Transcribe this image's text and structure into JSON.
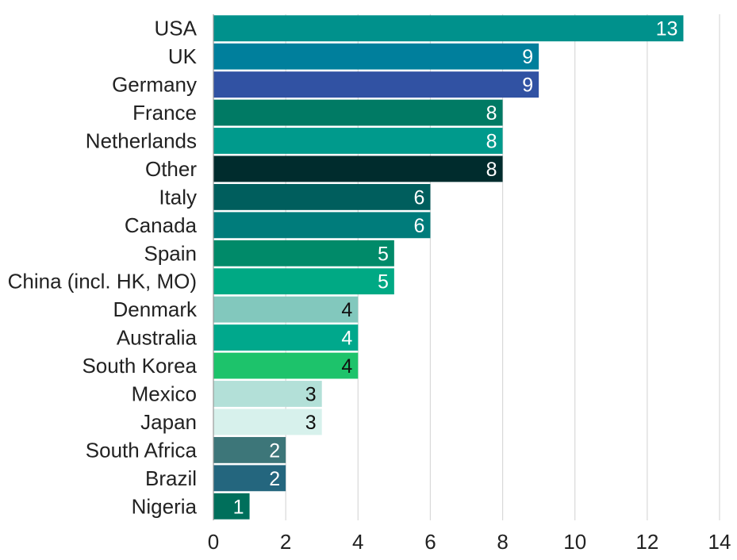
{
  "chart_data": {
    "type": "bar",
    "orientation": "horizontal",
    "title": "",
    "xlabel": "",
    "ylabel": "",
    "xlim": [
      0,
      14
    ],
    "xticks": [
      0,
      2,
      4,
      6,
      8,
      10,
      12,
      14
    ],
    "grid": true,
    "categories": [
      "USA",
      "UK",
      "Germany",
      "France",
      "Netherlands",
      "Other",
      "Italy",
      "Canada",
      "Spain",
      "China (incl. HK, MO)",
      "Denmark",
      "Australia",
      "South Korea",
      "Mexico",
      "Japan",
      "South Africa",
      "Brazil",
      "Nigeria"
    ],
    "values": [
      13,
      9,
      9,
      8,
      8,
      8,
      6,
      6,
      5,
      5,
      4,
      4,
      4,
      3,
      3,
      2,
      2,
      1
    ],
    "value_labels": [
      "13",
      "9",
      "9",
      "8",
      "8",
      "8",
      "6",
      "6",
      "5",
      "5",
      "4",
      "4",
      "4",
      "3",
      "3",
      "2",
      "2",
      "1"
    ],
    "colors": [
      "#00918c",
      "#007f9c",
      "#3152a3",
      "#007a64",
      "#009a8c",
      "#002c2d",
      "#005e5d",
      "#007c7b",
      "#008a69",
      "#00a984",
      "#82c8bd",
      "#00a88c",
      "#1dc36b",
      "#b3e0d8",
      "#d7f1ec",
      "#3d7679",
      "#24667e",
      "#006f5b"
    ],
    "label_colors": [
      "#ffffff",
      "#ffffff",
      "#ffffff",
      "#ffffff",
      "#ffffff",
      "#ffffff",
      "#ffffff",
      "#ffffff",
      "#ffffff",
      "#ffffff",
      "#111111",
      "#ffffff",
      "#111111",
      "#111111",
      "#111111",
      "#ffffff",
      "#ffffff",
      "#ffffff"
    ]
  }
}
